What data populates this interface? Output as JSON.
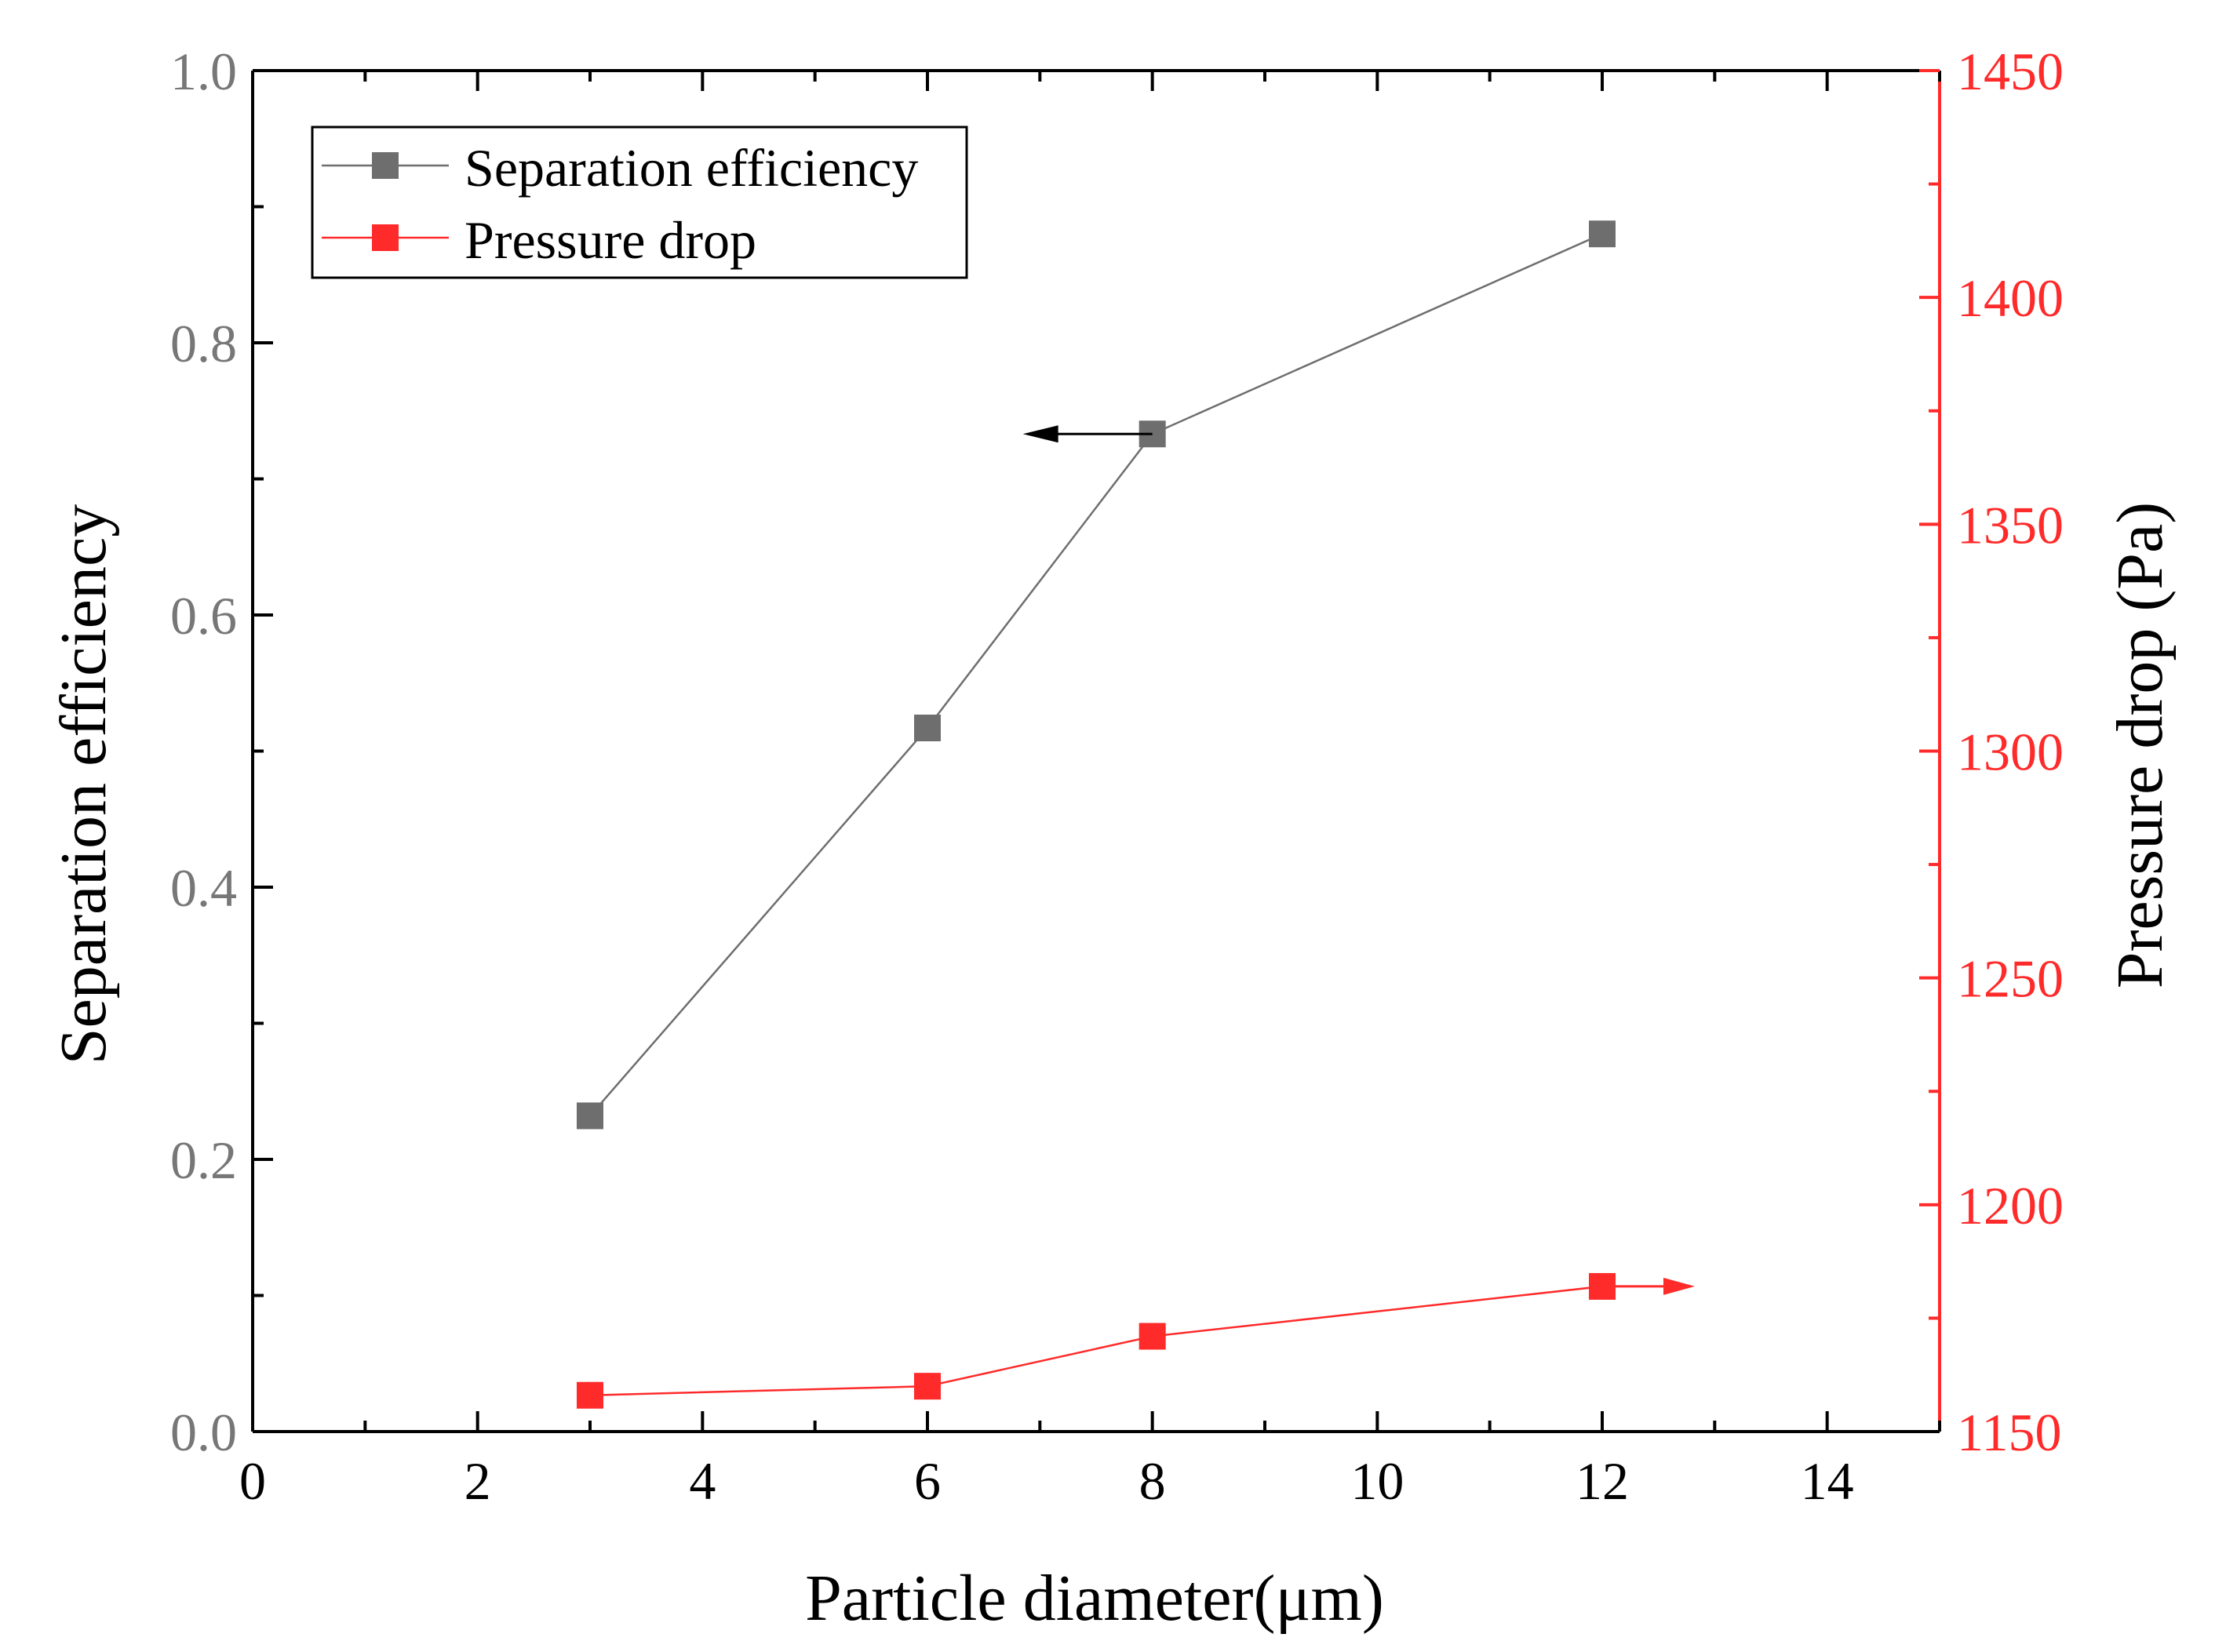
{
  "chart_data": {
    "type": "line",
    "xlabel": "Particle diameter(μm)",
    "ylabel_left": "Separation efficiency",
    "ylabel_right": "Pressure drop (Pa)",
    "xlim": [
      0,
      15
    ],
    "ylim_left": [
      0,
      1.0
    ],
    "ylim_right": [
      1150,
      1450
    ],
    "x_ticks": [
      "0",
      "2",
      "4",
      "6",
      "8",
      "10",
      "12",
      "14"
    ],
    "y_left_ticks": [
      "0.0",
      "0.2",
      "0.4",
      "0.6",
      "0.8",
      "1.0"
    ],
    "y_right_ticks": [
      "1150",
      "1200",
      "1250",
      "1300",
      "1350",
      "1400",
      "1450"
    ],
    "legend_position": "top-left",
    "colors": {
      "efficiency": "#6e6e6e",
      "pressure": "#ff2a2a",
      "right_axis": "#ff2a2a",
      "left_tick_text": "#777777"
    },
    "series": [
      {
        "name": "Separation efficiency",
        "axis": "left",
        "x": [
          3,
          6,
          8,
          12
        ],
        "values": [
          0.232,
          0.517,
          0.733,
          0.88
        ]
      },
      {
        "name": "Pressure drop",
        "axis": "right",
        "x": [
          3,
          6,
          8,
          12
        ],
        "values": [
          1158,
          1160,
          1171,
          1182
        ]
      }
    ]
  }
}
